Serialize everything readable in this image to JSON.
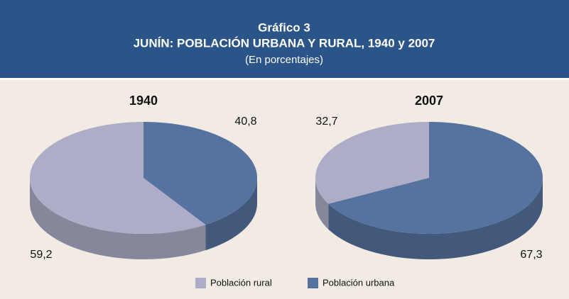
{
  "header": {
    "label": "Gráfico 3",
    "title": "JUNÍN: POBLACIÓN URBANA Y RURAL, 1940 y 2007",
    "subtitle": "(En porcentajes)"
  },
  "chart_data": [
    {
      "type": "pie",
      "title": "1940",
      "categories": [
        "Población rural",
        "Población urbana"
      ],
      "values": [
        59.2,
        40.8
      ],
      "value_labels": [
        "59,2",
        "40,8"
      ],
      "colors": [
        "#adadc8",
        "#56729e"
      ]
    },
    {
      "type": "pie",
      "title": "2007",
      "categories": [
        "Población rural",
        "Población urbana"
      ],
      "values": [
        32.7,
        67.3
      ],
      "value_labels": [
        "32,7",
        "67,3"
      ],
      "colors": [
        "#adadc8",
        "#56729e"
      ]
    }
  ]
}
